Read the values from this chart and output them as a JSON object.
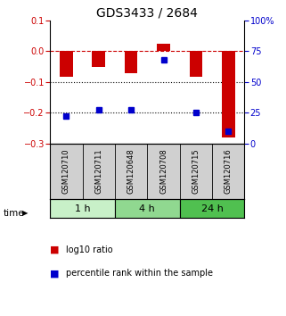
{
  "title": "GDS3433 / 2684",
  "samples": [
    "GSM120710",
    "GSM120711",
    "GSM120648",
    "GSM120708",
    "GSM120715",
    "GSM120716"
  ],
  "log10_ratio": [
    -0.082,
    -0.052,
    -0.072,
    0.025,
    -0.082,
    -0.282
  ],
  "percentile_rank": [
    22,
    27,
    27,
    68,
    25,
    10
  ],
  "time_groups": [
    {
      "label": "1 h",
      "start": 0,
      "end": 2,
      "color": "#c8f0c8"
    },
    {
      "label": "4 h",
      "start": 2,
      "end": 4,
      "color": "#90d890"
    },
    {
      "label": "24 h",
      "start": 4,
      "end": 6,
      "color": "#50c050"
    }
  ],
  "ylim_left": [
    -0.3,
    0.1
  ],
  "ylim_right": [
    0,
    100
  ],
  "yticks_left": [
    0.1,
    0.0,
    -0.1,
    -0.2,
    -0.3
  ],
  "yticks_right": [
    100,
    75,
    50,
    25,
    0
  ],
  "bar_color": "#cc0000",
  "dot_color": "#0000cc",
  "dotted_lines": [
    -0.1,
    -0.2
  ],
  "background_color": "#ffffff",
  "plot_bg_color": "#ffffff",
  "title_fontsize": 10,
  "tick_fontsize": 7,
  "label_fontsize": 6,
  "time_fontsize": 8,
  "legend_fontsize": 7
}
